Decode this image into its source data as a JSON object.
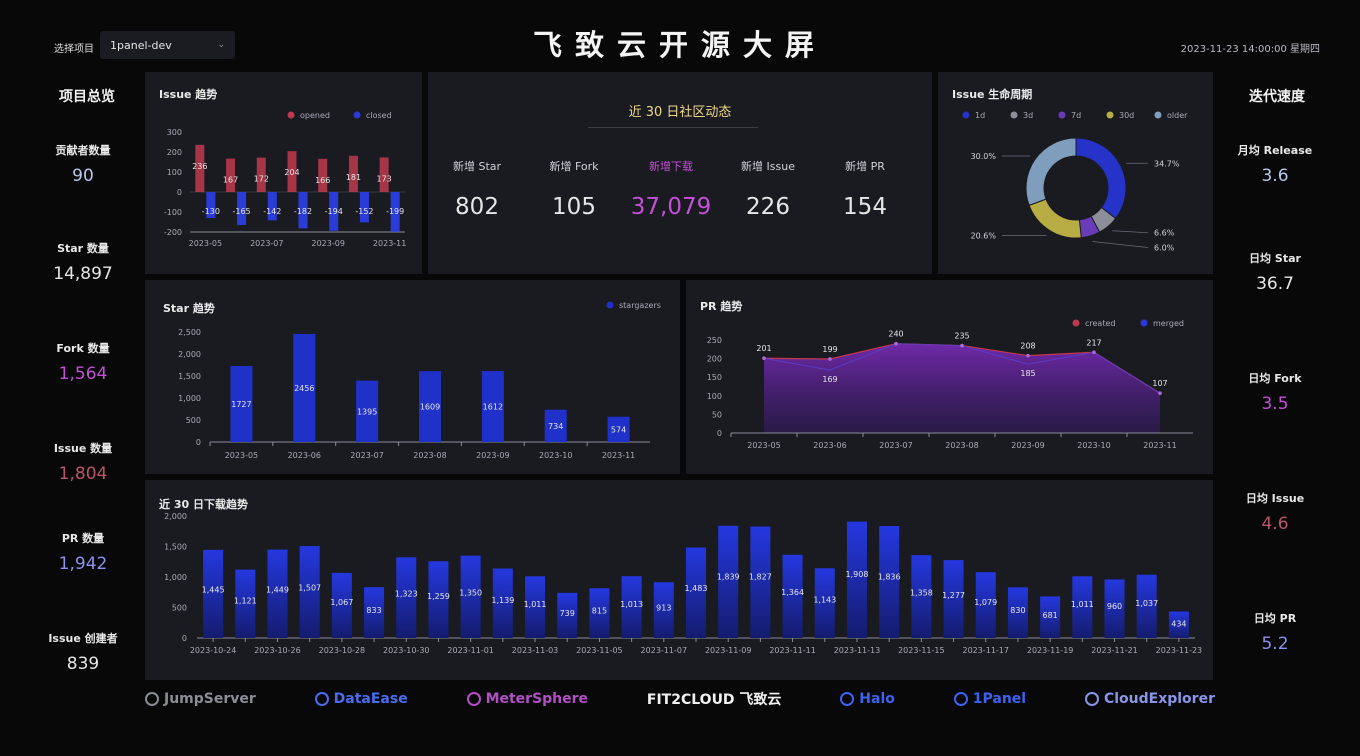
{
  "header": {
    "selector_label": "选择项目",
    "project": "1panel-dev",
    "title": "飞致云开源大屏",
    "datetime": "2023-11-23 14:00:00 星期四"
  },
  "left_stats": {
    "title": "项目总览",
    "items": [
      {
        "label": "贡献者数量",
        "value": "90",
        "color": "#b9c8f0"
      },
      {
        "label": "Star 数量",
        "value": "14,897",
        "color": "#e6e6e6"
      },
      {
        "label": "Fork 数量",
        "value": "1,564",
        "color": "#c44fd8"
      },
      {
        "label": "Issue 数量",
        "value": "1,804",
        "color": "#b8556a"
      },
      {
        "label": "PR 数量",
        "value": "1,942",
        "color": "#8e90ef"
      },
      {
        "label": "Issue 创建者",
        "value": "839",
        "color": "#e6e6e6"
      }
    ]
  },
  "right_stats": {
    "title": "迭代速度",
    "items": [
      {
        "label": "月均 Release",
        "value": "3.6",
        "color": "#b9c8f0"
      },
      {
        "label": "日均 Star",
        "value": "36.7",
        "color": "#e6e6e6"
      },
      {
        "label": "日均 Fork",
        "value": "3.5",
        "color": "#c44fd8"
      },
      {
        "label": "日均 Issue",
        "value": "4.6",
        "color": "#b8556a"
      },
      {
        "label": "日均 PR",
        "value": "5.2",
        "color": "#8e90ef"
      }
    ]
  },
  "community": {
    "title": "近 30 日社区动态",
    "items": [
      {
        "label": "新增 Star",
        "value": "802",
        "color": "#e6e6e6",
        "label_color": "#d0d2da"
      },
      {
        "label": "新增 Fork",
        "value": "105",
        "color": "#e6e6e6",
        "label_color": "#d0d2da"
      },
      {
        "label": "新增下载",
        "value": "37,079",
        "color": "#c44fd8",
        "label_color": "#c44fd8"
      },
      {
        "label": "新增 Issue",
        "value": "226",
        "color": "#e6e6e6",
        "label_color": "#d0d2da"
      },
      {
        "label": "新增 PR",
        "value": "154",
        "color": "#e6e6e6",
        "label_color": "#d0d2da"
      }
    ]
  },
  "footer": {
    "logos": [
      {
        "name": "JumpServer",
        "color": "#8a8c96"
      },
      {
        "name": "DataEase",
        "color": "#4a6cf0"
      },
      {
        "name": "MeterSphere",
        "color": "#b24fc4"
      },
      {
        "name": "FIT2CLOUD 飞致云",
        "color": "#f2f2f2"
      },
      {
        "name": "Halo",
        "color": "#3d62f2"
      },
      {
        "name": "1Panel",
        "color": "#3d62f2"
      },
      {
        "name": "CloudExplorer",
        "color": "#8a94e8"
      }
    ]
  },
  "colors": {
    "opened": "#c0394f",
    "closed": "#2a3bd8",
    "bar": "#2031c9",
    "created": "#c0394f",
    "merged": "#2a3bd8"
  },
  "chart_data": [
    {
      "id": "issue",
      "type": "bar",
      "title": "Issue 趋势",
      "categories": [
        "2023-05",
        "2023-06",
        "2023-07",
        "2023-08",
        "2023-09",
        "2023-10",
        "2023-11"
      ],
      "x_ticks": [
        "2023-05",
        "2023-07",
        "2023-09",
        "2023-11"
      ],
      "series": [
        {
          "name": "opened",
          "values": [
            236,
            167,
            172,
            204,
            166,
            181,
            173
          ]
        },
        {
          "name": "closed",
          "values": [
            -130,
            -165,
            -142,
            -182,
            -194,
            -152,
            -199
          ]
        }
      ],
      "ylim": [
        -200,
        300
      ],
      "y_ticks": [
        -200,
        -100,
        0,
        100,
        200,
        300
      ],
      "legend": "top-right"
    },
    {
      "id": "star",
      "type": "bar",
      "title": "Star 趋势",
      "categories": [
        "2023-05",
        "2023-06",
        "2023-07",
        "2023-08",
        "2023-09",
        "2023-10",
        "2023-11"
      ],
      "series": [
        {
          "name": "stargazers",
          "values": [
            1727,
            2456,
            1395,
            1609,
            1612,
            734,
            574
          ]
        }
      ],
      "ylim": [
        0,
        2500
      ],
      "y_ticks": [
        0,
        500,
        1000,
        1500,
        2000,
        2500
      ],
      "y_tick_labels": [
        "0",
        "500",
        "1,000",
        "1,500",
        "2,000",
        "2,500"
      ],
      "legend": "top-right"
    },
    {
      "id": "pr",
      "type": "area",
      "title": "PR 趋势",
      "categories": [
        "2023-05",
        "2023-06",
        "2023-07",
        "2023-08",
        "2023-09",
        "2023-10",
        "2023-11"
      ],
      "series": [
        {
          "name": "created",
          "values": [
            201,
            199,
            240,
            235,
            208,
            217,
            107
          ]
        },
        {
          "name": "merged",
          "values": [
            201,
            169,
            240,
            235,
            185,
            217,
            107
          ]
        }
      ],
      "labels": [
        {
          "index": 0,
          "text": "201",
          "series": "created"
        },
        {
          "index": 1,
          "text": "199",
          "series": "created"
        },
        {
          "index": 1,
          "text": "169",
          "series": "merged"
        },
        {
          "index": 2,
          "text": "240",
          "series": "created"
        },
        {
          "index": 3,
          "text": "235",
          "series": "created"
        },
        {
          "index": 4,
          "text": "208",
          "series": "created"
        },
        {
          "index": 4,
          "text": "185",
          "series": "merged"
        },
        {
          "index": 5,
          "text": "217",
          "series": "created"
        },
        {
          "index": 6,
          "text": "107",
          "series": "created"
        }
      ],
      "ylim": [
        0,
        250
      ],
      "y_ticks": [
        0,
        50,
        100,
        150,
        200,
        250
      ],
      "legend": "top-right"
    },
    {
      "id": "lifecycle",
      "type": "pie",
      "title": "Issue 生命周期",
      "legend": "top",
      "slices": [
        {
          "name": "1d",
          "value": 34.7,
          "label": "34.7%",
          "color": "#2633c8"
        },
        {
          "name": "3d",
          "value": 6.6,
          "label": "6.6%",
          "color": "#8c8f99"
        },
        {
          "name": "7d",
          "value": 6.0,
          "label": "6.0%",
          "color": "#6a3cb8"
        },
        {
          "name": "30d",
          "value": 20.6,
          "label": "20.6%",
          "color": "#b8ad44"
        },
        {
          "name": "older",
          "value": 30.0,
          "label": "30.0%",
          "color": "#7f9dbd"
        }
      ]
    },
    {
      "id": "downloads",
      "type": "bar",
      "title": "近 30 日下载趋势",
      "categories": [
        "2023-10-24",
        "2023-10-25",
        "2023-10-26",
        "2023-10-27",
        "2023-10-28",
        "2023-10-29",
        "2023-10-30",
        "2023-10-31",
        "2023-11-01",
        "2023-11-02",
        "2023-11-03",
        "2023-11-04",
        "2023-11-05",
        "2023-11-06",
        "2023-11-07",
        "2023-11-08",
        "2023-11-09",
        "2023-11-10",
        "2023-11-11",
        "2023-11-12",
        "2023-11-13",
        "2023-11-14",
        "2023-11-15",
        "2023-11-16",
        "2023-11-17",
        "2023-11-18",
        "2023-11-19",
        "2023-11-20",
        "2023-11-21",
        "2023-11-22",
        "2023-11-23"
      ],
      "x_ticks": [
        "2023-10-24",
        "2023-10-26",
        "2023-10-28",
        "2023-10-30",
        "2023-11-01",
        "2023-11-03",
        "2023-11-05",
        "2023-11-07",
        "2023-11-09",
        "2023-11-11",
        "2023-11-13",
        "2023-11-15",
        "2023-11-17",
        "2023-11-19",
        "2023-11-21",
        "2023-11-23"
      ],
      "series": [
        {
          "name": "downloads",
          "values": [
            1445,
            1121,
            1449,
            1507,
            1067,
            833,
            1323,
            1259,
            1350,
            1139,
            1011,
            739,
            815,
            1013,
            913,
            1483,
            1839,
            1827,
            1364,
            1143,
            1908,
            1836,
            1358,
            1277,
            1079,
            830,
            681,
            1011,
            960,
            1037,
            434
          ]
        }
      ],
      "ylim": [
        0,
        2000
      ],
      "y_ticks": [
        0,
        500,
        1000,
        1500,
        2000
      ],
      "y_tick_labels": [
        "0",
        "500",
        "1,000",
        "1,500",
        "2,000"
      ]
    }
  ]
}
